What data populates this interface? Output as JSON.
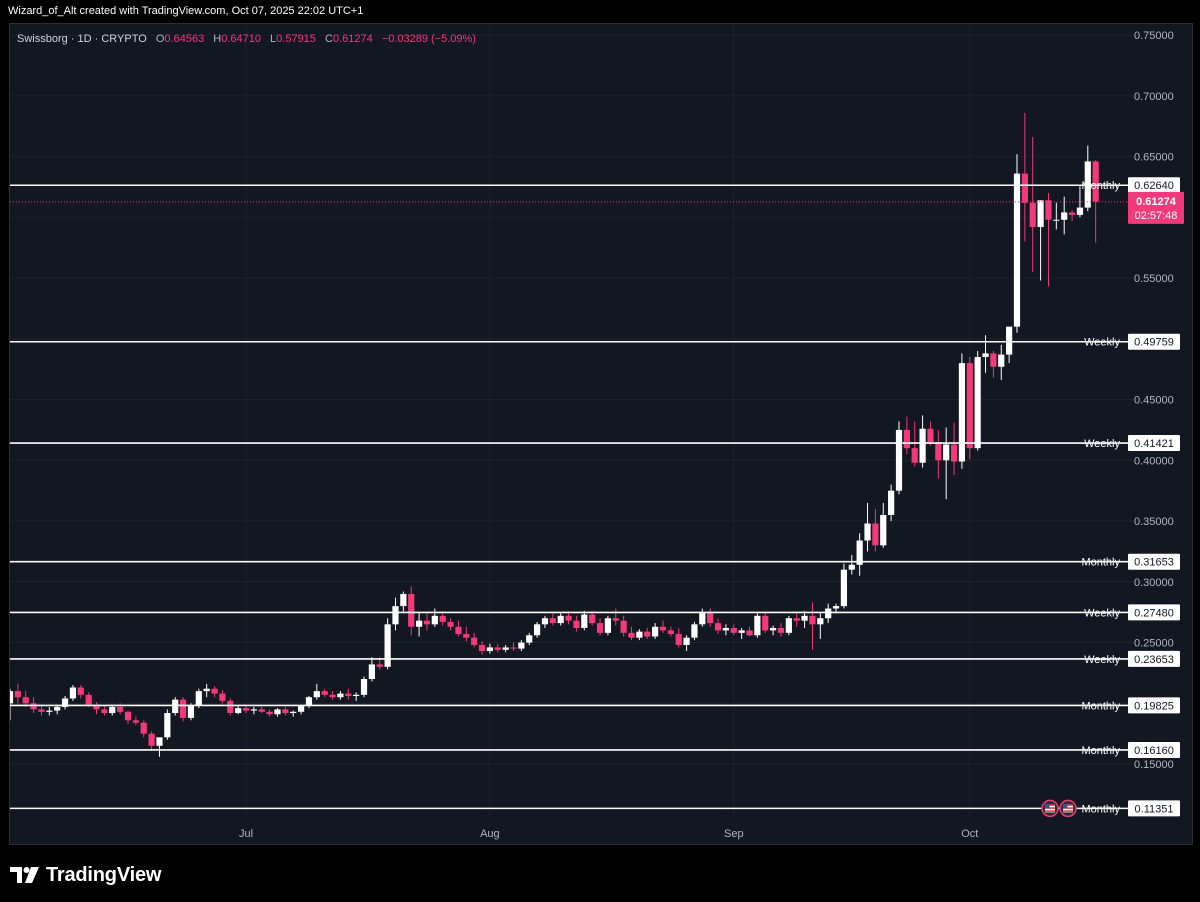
{
  "caption": "Wizard_of_Alt created with TradingView.com, Oct 07, 2025 22:02 UTC+1",
  "legend": {
    "symbol": "Swissborg · 1D · CRYPTO",
    "open_label": "O",
    "open": "0.64563",
    "high_label": "H",
    "high": "0.64710",
    "low_label": "L",
    "low": "0.57915",
    "close_label": "C",
    "close": "0.61274",
    "change": "−0.03289 (−5.09%)"
  },
  "branding": {
    "text": "TradingView",
    "logo": "tradingview-logo-icon"
  },
  "colors": {
    "up": "#ffffff",
    "down": "#f23a7a",
    "background": "#131722",
    "grid": "#1e222d",
    "axis_text": "#b2b5be"
  },
  "chart_data": {
    "type": "candlestick",
    "x_range": [
      "2025-06-01",
      "2025-10-22"
    ],
    "ylim": [
      0.113,
      0.755
    ],
    "y_ticks": [
      "0.75000",
      "0.70000",
      "0.65000",
      "0.55000",
      "0.45000",
      "0.40000",
      "0.35000",
      "0.30000",
      "0.25000",
      "0.15000"
    ],
    "x_ticks": [
      {
        "date": "2025-07-01",
        "label": "Jul"
      },
      {
        "date": "2025-08-01",
        "label": "Aug"
      },
      {
        "date": "2025-09-01",
        "label": "Sep"
      },
      {
        "date": "2025-10-01",
        "label": "Oct"
      }
    ],
    "current_price": {
      "value": 0.61274,
      "label": "0.61274",
      "countdown": "02:57:48"
    },
    "levels": [
      {
        "label": "Monthly",
        "value": 0.6264,
        "value_label": "0.62640"
      },
      {
        "label": "Weekly",
        "value": 0.49759,
        "value_label": "0.49759"
      },
      {
        "label": "Weekly",
        "value": 0.41421,
        "value_label": "0.41421"
      },
      {
        "label": "Monthly",
        "value": 0.31653,
        "value_label": "0.31653"
      },
      {
        "label": "Weekly",
        "value": 0.2748,
        "value_label": "0.27480"
      },
      {
        "label": "Weekly",
        "value": 0.23653,
        "value_label": "0.23653"
      },
      {
        "label": "Monthly",
        "value": 0.19825,
        "value_label": "0.19825"
      },
      {
        "label": "Monthly",
        "value": 0.1616,
        "value_label": "0.16160"
      },
      {
        "label": "Monthly",
        "value": 0.11351,
        "value_label": "0.11351"
      }
    ],
    "events": [
      "us-flag-icon",
      "us-flag-icon"
    ],
    "candles": [
      {
        "o": 0.2,
        "h": 0.212,
        "l": 0.186,
        "c": 0.21
      },
      {
        "o": 0.21,
        "h": 0.216,
        "l": 0.2,
        "c": 0.205
      },
      {
        "o": 0.205,
        "h": 0.21,
        "l": 0.197,
        "c": 0.2
      },
      {
        "o": 0.2,
        "h": 0.205,
        "l": 0.192,
        "c": 0.195
      },
      {
        "o": 0.195,
        "h": 0.199,
        "l": 0.19,
        "c": 0.193
      },
      {
        "o": 0.193,
        "h": 0.197,
        "l": 0.19,
        "c": 0.194
      },
      {
        "o": 0.194,
        "h": 0.199,
        "l": 0.191,
        "c": 0.197
      },
      {
        "o": 0.197,
        "h": 0.206,
        "l": 0.195,
        "c": 0.204
      },
      {
        "o": 0.204,
        "h": 0.215,
        "l": 0.202,
        "c": 0.213
      },
      {
        "o": 0.213,
        "h": 0.215,
        "l": 0.204,
        "c": 0.207
      },
      {
        "o": 0.207,
        "h": 0.209,
        "l": 0.197,
        "c": 0.199
      },
      {
        "o": 0.199,
        "h": 0.201,
        "l": 0.191,
        "c": 0.195
      },
      {
        "o": 0.195,
        "h": 0.198,
        "l": 0.19,
        "c": 0.192
      },
      {
        "o": 0.192,
        "h": 0.199,
        "l": 0.19,
        "c": 0.197
      },
      {
        "o": 0.197,
        "h": 0.2,
        "l": 0.191,
        "c": 0.193
      },
      {
        "o": 0.193,
        "h": 0.194,
        "l": 0.183,
        "c": 0.186
      },
      {
        "o": 0.186,
        "h": 0.189,
        "l": 0.182,
        "c": 0.184
      },
      {
        "o": 0.184,
        "h": 0.186,
        "l": 0.172,
        "c": 0.175
      },
      {
        "o": 0.175,
        "h": 0.177,
        "l": 0.162,
        "c": 0.165
      },
      {
        "o": 0.165,
        "h": 0.167,
        "l": 0.156,
        "c": 0.172
      },
      {
        "o": 0.172,
        "h": 0.195,
        "l": 0.17,
        "c": 0.192
      },
      {
        "o": 0.192,
        "h": 0.205,
        "l": 0.19,
        "c": 0.203
      },
      {
        "o": 0.203,
        "h": 0.205,
        "l": 0.185,
        "c": 0.188
      },
      {
        "o": 0.188,
        "h": 0.2,
        "l": 0.186,
        "c": 0.198
      },
      {
        "o": 0.198,
        "h": 0.212,
        "l": 0.196,
        "c": 0.21
      },
      {
        "o": 0.21,
        "h": 0.216,
        "l": 0.205,
        "c": 0.212
      },
      {
        "o": 0.212,
        "h": 0.214,
        "l": 0.205,
        "c": 0.208
      },
      {
        "o": 0.208,
        "h": 0.211,
        "l": 0.2,
        "c": 0.202
      },
      {
        "o": 0.202,
        "h": 0.204,
        "l": 0.19,
        "c": 0.192
      },
      {
        "o": 0.192,
        "h": 0.198,
        "l": 0.191,
        "c": 0.196
      },
      {
        "o": 0.196,
        "h": 0.198,
        "l": 0.192,
        "c": 0.194
      },
      {
        "o": 0.194,
        "h": 0.197,
        "l": 0.191,
        "c": 0.195
      },
      {
        "o": 0.195,
        "h": 0.197,
        "l": 0.192,
        "c": 0.193
      },
      {
        "o": 0.193,
        "h": 0.195,
        "l": 0.189,
        "c": 0.191
      },
      {
        "o": 0.191,
        "h": 0.196,
        "l": 0.189,
        "c": 0.195
      },
      {
        "o": 0.195,
        "h": 0.197,
        "l": 0.19,
        "c": 0.192
      },
      {
        "o": 0.192,
        "h": 0.194,
        "l": 0.189,
        "c": 0.193
      },
      {
        "o": 0.193,
        "h": 0.199,
        "l": 0.191,
        "c": 0.198
      },
      {
        "o": 0.198,
        "h": 0.206,
        "l": 0.196,
        "c": 0.205
      },
      {
        "o": 0.205,
        "h": 0.216,
        "l": 0.203,
        "c": 0.21
      },
      {
        "o": 0.21,
        "h": 0.212,
        "l": 0.205,
        "c": 0.207
      },
      {
        "o": 0.207,
        "h": 0.21,
        "l": 0.203,
        "c": 0.205
      },
      {
        "o": 0.205,
        "h": 0.21,
        "l": 0.203,
        "c": 0.208
      },
      {
        "o": 0.208,
        "h": 0.212,
        "l": 0.203,
        "c": 0.206
      },
      {
        "o": 0.206,
        "h": 0.209,
        "l": 0.202,
        "c": 0.207
      },
      {
        "o": 0.207,
        "h": 0.222,
        "l": 0.205,
        "c": 0.22
      },
      {
        "o": 0.22,
        "h": 0.238,
        "l": 0.218,
        "c": 0.232
      },
      {
        "o": 0.232,
        "h": 0.238,
        "l": 0.228,
        "c": 0.23
      },
      {
        "o": 0.23,
        "h": 0.27,
        "l": 0.228,
        "c": 0.265
      },
      {
        "o": 0.265,
        "h": 0.287,
        "l": 0.26,
        "c": 0.28
      },
      {
        "o": 0.28,
        "h": 0.292,
        "l": 0.274,
        "c": 0.29
      },
      {
        "o": 0.29,
        "h": 0.296,
        "l": 0.256,
        "c": 0.263
      },
      {
        "o": 0.263,
        "h": 0.275,
        "l": 0.255,
        "c": 0.268
      },
      {
        "o": 0.268,
        "h": 0.274,
        "l": 0.26,
        "c": 0.265
      },
      {
        "o": 0.265,
        "h": 0.278,
        "l": 0.263,
        "c": 0.272
      },
      {
        "o": 0.272,
        "h": 0.276,
        "l": 0.264,
        "c": 0.267
      },
      {
        "o": 0.267,
        "h": 0.27,
        "l": 0.26,
        "c": 0.263
      },
      {
        "o": 0.263,
        "h": 0.268,
        "l": 0.255,
        "c": 0.257
      },
      {
        "o": 0.257,
        "h": 0.263,
        "l": 0.251,
        "c": 0.254
      },
      {
        "o": 0.254,
        "h": 0.258,
        "l": 0.246,
        "c": 0.248
      },
      {
        "o": 0.248,
        "h": 0.251,
        "l": 0.24,
        "c": 0.243
      },
      {
        "o": 0.243,
        "h": 0.249,
        "l": 0.241,
        "c": 0.246
      },
      {
        "o": 0.246,
        "h": 0.249,
        "l": 0.242,
        "c": 0.244
      },
      {
        "o": 0.244,
        "h": 0.248,
        "l": 0.242,
        "c": 0.246
      },
      {
        "o": 0.246,
        "h": 0.25,
        "l": 0.243,
        "c": 0.245
      },
      {
        "o": 0.245,
        "h": 0.252,
        "l": 0.243,
        "c": 0.25
      },
      {
        "o": 0.25,
        "h": 0.258,
        "l": 0.248,
        "c": 0.256
      },
      {
        "o": 0.256,
        "h": 0.267,
        "l": 0.254,
        "c": 0.265
      },
      {
        "o": 0.265,
        "h": 0.272,
        "l": 0.262,
        "c": 0.27
      },
      {
        "o": 0.27,
        "h": 0.274,
        "l": 0.264,
        "c": 0.266
      },
      {
        "o": 0.266,
        "h": 0.275,
        "l": 0.264,
        "c": 0.272
      },
      {
        "o": 0.272,
        "h": 0.276,
        "l": 0.265,
        "c": 0.268
      },
      {
        "o": 0.268,
        "h": 0.272,
        "l": 0.259,
        "c": 0.262
      },
      {
        "o": 0.262,
        "h": 0.276,
        "l": 0.26,
        "c": 0.273
      },
      {
        "o": 0.273,
        "h": 0.276,
        "l": 0.264,
        "c": 0.266
      },
      {
        "o": 0.266,
        "h": 0.27,
        "l": 0.256,
        "c": 0.258
      },
      {
        "o": 0.258,
        "h": 0.272,
        "l": 0.256,
        "c": 0.27
      },
      {
        "o": 0.27,
        "h": 0.278,
        "l": 0.264,
        "c": 0.268
      },
      {
        "o": 0.268,
        "h": 0.272,
        "l": 0.255,
        "c": 0.258
      },
      {
        "o": 0.258,
        "h": 0.263,
        "l": 0.252,
        "c": 0.254
      },
      {
        "o": 0.254,
        "h": 0.261,
        "l": 0.252,
        "c": 0.259
      },
      {
        "o": 0.259,
        "h": 0.262,
        "l": 0.253,
        "c": 0.255
      },
      {
        "o": 0.255,
        "h": 0.266,
        "l": 0.253,
        "c": 0.263
      },
      {
        "o": 0.263,
        "h": 0.268,
        "l": 0.258,
        "c": 0.26
      },
      {
        "o": 0.26,
        "h": 0.263,
        "l": 0.255,
        "c": 0.257
      },
      {
        "o": 0.257,
        "h": 0.262,
        "l": 0.246,
        "c": 0.248
      },
      {
        "o": 0.248,
        "h": 0.256,
        "l": 0.243,
        "c": 0.254
      },
      {
        "o": 0.254,
        "h": 0.267,
        "l": 0.252,
        "c": 0.265
      },
      {
        "o": 0.265,
        "h": 0.278,
        "l": 0.263,
        "c": 0.275
      },
      {
        "o": 0.275,
        "h": 0.278,
        "l": 0.263,
        "c": 0.266
      },
      {
        "o": 0.266,
        "h": 0.27,
        "l": 0.257,
        "c": 0.26
      },
      {
        "o": 0.26,
        "h": 0.265,
        "l": 0.256,
        "c": 0.262
      },
      {
        "o": 0.262,
        "h": 0.265,
        "l": 0.256,
        "c": 0.258
      },
      {
        "o": 0.258,
        "h": 0.262,
        "l": 0.253,
        "c": 0.26
      },
      {
        "o": 0.26,
        "h": 0.263,
        "l": 0.255,
        "c": 0.256
      },
      {
        "o": 0.256,
        "h": 0.274,
        "l": 0.254,
        "c": 0.272
      },
      {
        "o": 0.272,
        "h": 0.275,
        "l": 0.258,
        "c": 0.26
      },
      {
        "o": 0.26,
        "h": 0.264,
        "l": 0.256,
        "c": 0.262
      },
      {
        "o": 0.262,
        "h": 0.266,
        "l": 0.255,
        "c": 0.258
      },
      {
        "o": 0.258,
        "h": 0.272,
        "l": 0.256,
        "c": 0.27
      },
      {
        "o": 0.27,
        "h": 0.274,
        "l": 0.263,
        "c": 0.268
      },
      {
        "o": 0.268,
        "h": 0.276,
        "l": 0.262,
        "c": 0.272
      },
      {
        "o": 0.272,
        "h": 0.283,
        "l": 0.244,
        "c": 0.265
      },
      {
        "o": 0.265,
        "h": 0.275,
        "l": 0.253,
        "c": 0.27
      },
      {
        "o": 0.27,
        "h": 0.282,
        "l": 0.266,
        "c": 0.278
      },
      {
        "o": 0.278,
        "h": 0.282,
        "l": 0.274,
        "c": 0.28
      },
      {
        "o": 0.28,
        "h": 0.315,
        "l": 0.278,
        "c": 0.31
      },
      {
        "o": 0.31,
        "h": 0.322,
        "l": 0.306,
        "c": 0.314
      },
      {
        "o": 0.314,
        "h": 0.34,
        "l": 0.305,
        "c": 0.334
      },
      {
        "o": 0.334,
        "h": 0.365,
        "l": 0.325,
        "c": 0.348
      },
      {
        "o": 0.348,
        "h": 0.36,
        "l": 0.325,
        "c": 0.33
      },
      {
        "o": 0.33,
        "h": 0.365,
        "l": 0.328,
        "c": 0.355
      },
      {
        "o": 0.355,
        "h": 0.38,
        "l": 0.35,
        "c": 0.375
      },
      {
        "o": 0.375,
        "h": 0.432,
        "l": 0.372,
        "c": 0.425
      },
      {
        "o": 0.425,
        "h": 0.436,
        "l": 0.405,
        "c": 0.41
      },
      {
        "o": 0.41,
        "h": 0.432,
        "l": 0.395,
        "c": 0.398
      },
      {
        "o": 0.398,
        "h": 0.437,
        "l": 0.394,
        "c": 0.426
      },
      {
        "o": 0.426,
        "h": 0.432,
        "l": 0.412,
        "c": 0.415
      },
      {
        "o": 0.415,
        "h": 0.425,
        "l": 0.385,
        "c": 0.4
      },
      {
        "o": 0.4,
        "h": 0.427,
        "l": 0.368,
        "c": 0.413
      },
      {
        "o": 0.413,
        "h": 0.431,
        "l": 0.388,
        "c": 0.399
      },
      {
        "o": 0.399,
        "h": 0.488,
        "l": 0.393,
        "c": 0.48
      },
      {
        "o": 0.48,
        "h": 0.485,
        "l": 0.401,
        "c": 0.41
      },
      {
        "o": 0.41,
        "h": 0.49,
        "l": 0.408,
        "c": 0.485
      },
      {
        "o": 0.485,
        "h": 0.503,
        "l": 0.472,
        "c": 0.488
      },
      {
        "o": 0.488,
        "h": 0.49,
        "l": 0.468,
        "c": 0.477
      },
      {
        "o": 0.477,
        "h": 0.495,
        "l": 0.466,
        "c": 0.487
      },
      {
        "o": 0.487,
        "h": 0.51,
        "l": 0.48,
        "c": 0.51
      },
      {
        "o": 0.51,
        "h": 0.652,
        "l": 0.505,
        "c": 0.636
      },
      {
        "o": 0.636,
        "h": 0.686,
        "l": 0.58,
        "c": 0.612
      },
      {
        "o": 0.612,
        "h": 0.666,
        "l": 0.555,
        "c": 0.592
      },
      {
        "o": 0.592,
        "h": 0.612,
        "l": 0.548,
        "c": 0.614
      },
      {
        "o": 0.614,
        "h": 0.62,
        "l": 0.543,
        "c": 0.598
      },
      {
        "o": 0.598,
        "h": 0.612,
        "l": 0.59,
        "c": 0.598
      },
      {
        "o": 0.598,
        "h": 0.617,
        "l": 0.586,
        "c": 0.604
      },
      {
        "o": 0.604,
        "h": 0.606,
        "l": 0.597,
        "c": 0.602
      },
      {
        "o": 0.602,
        "h": 0.627,
        "l": 0.6,
        "c": 0.608
      },
      {
        "o": 0.608,
        "h": 0.659,
        "l": 0.605,
        "c": 0.646
      },
      {
        "o": 0.646,
        "h": 0.647,
        "l": 0.579,
        "c": 0.613
      }
    ]
  }
}
